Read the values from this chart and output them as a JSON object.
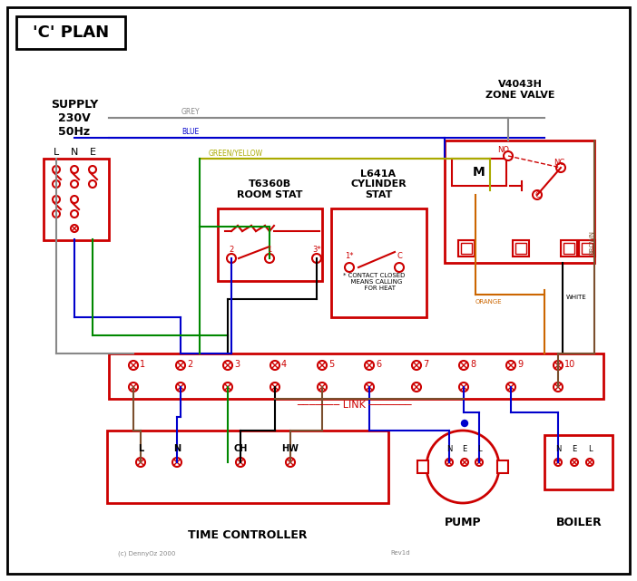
{
  "title": "'C' PLAN",
  "bg_color": "#ffffff",
  "border_color": "#000000",
  "red": "#cc0000",
  "dark_red": "#aa0000",
  "blue": "#0000cc",
  "green": "#008800",
  "brown": "#7b4f2e",
  "grey": "#888888",
  "orange": "#cc6600",
  "black": "#000000",
  "green_yellow": "#4a8800",
  "white_wire": "#000000",
  "zone_valve_label": "V4043H\nZONE VALVE",
  "room_stat_label": "T6360B\nROOM STAT",
  "cylinder_stat_label": "L641A\nCYLINDER\nSTAT",
  "supply_label": "SUPPLY\n230V\n50Hz",
  "time_controller_label": "TIME CONTROLLER",
  "pump_label": "PUMP",
  "boiler_label": "BOILER",
  "link_label": "LINK"
}
